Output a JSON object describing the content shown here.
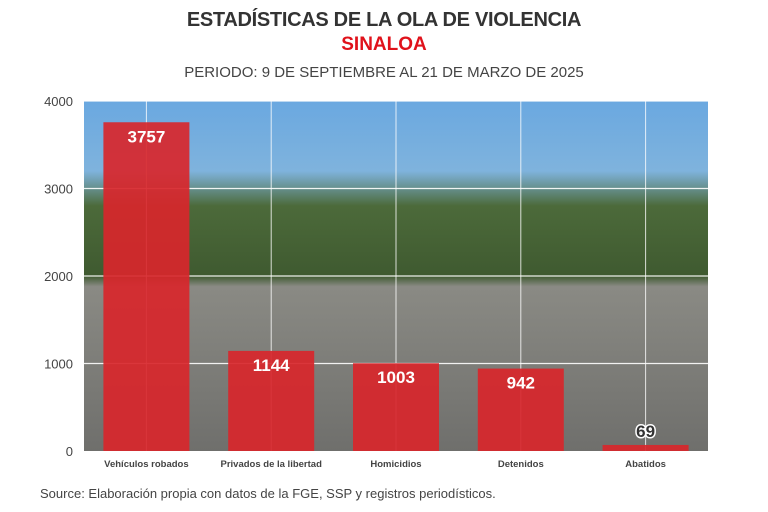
{
  "header": {
    "title": "ESTADÍSTICAS DE LA OLA DE VIOLENCIA",
    "subtitle": "SINALOA",
    "period": "PERIODO: 9 DE SEPTIEMBRE AL 21 DE MARZO DE 2025"
  },
  "source": "Source: Elaboración propia con datos de la FGE, SSP y registros periodísticos.",
  "chart_data": {
    "type": "bar",
    "title": "ESTADÍSTICAS DE LA OLA DE VIOLENCIA",
    "categories": [
      "Vehículos robados",
      "Privados de la libertad",
      "Homicidios",
      "Detenidos",
      "Abatidos"
    ],
    "values": [
      3757,
      1144,
      1003,
      942,
      69
    ],
    "labels": [
      "3757",
      "1144",
      "1003",
      "942",
      "69"
    ],
    "yticks": [
      "0",
      "1000",
      "2000",
      "3000",
      "4000"
    ],
    "ylim": [
      0,
      4000
    ],
    "xlabel": "",
    "ylabel": "",
    "grid": true,
    "bar_color": "#d8262b"
  }
}
